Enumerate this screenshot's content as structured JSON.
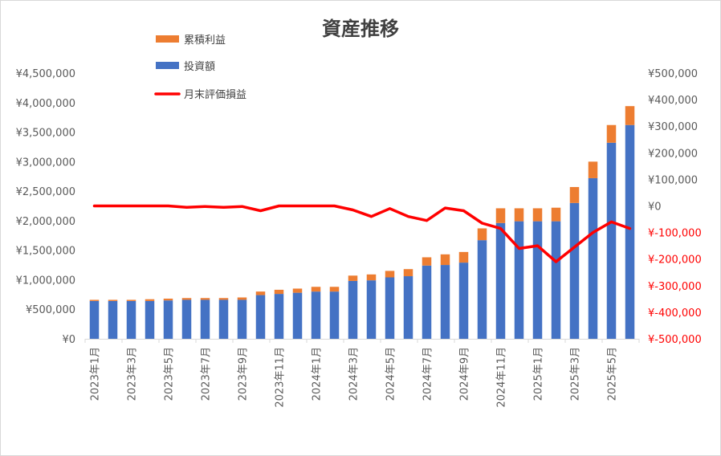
{
  "chart_data": {
    "type": "bar",
    "title": "資産推移",
    "categories": [
      "2023年1月",
      "2023年2月",
      "2023年3月",
      "2023年4月",
      "2023年5月",
      "2023年6月",
      "2023年7月",
      "2023年8月",
      "2023年9月",
      "2023年10月",
      "2023年11月",
      "2023年12月",
      "2024年1月",
      "2024年2月",
      "2024年3月",
      "2024年4月",
      "2024年5月",
      "2024年6月",
      "2024年7月",
      "2024年8月",
      "2024年9月",
      "2024年10月",
      "2024年11月",
      "2024年12月",
      "2025年1月",
      "2025年2月",
      "2025年3月",
      "2025年4月",
      "2025年5月",
      "2025年6月"
    ],
    "x_tick_labels": [
      "2023年1月",
      "2023年3月",
      "2023年5月",
      "2023年7月",
      "2023年9月",
      "2023年11月",
      "2024年1月",
      "2024年3月",
      "2024年5月",
      "2024年7月",
      "2024年9月",
      "2024年11月",
      "2025年1月",
      "2025年3月",
      "2025年5月"
    ],
    "series": [
      {
        "name": "投資額",
        "kind": "stacked-bar",
        "axis": "left",
        "color": "#4472c4",
        "values": [
          640000,
          640000,
          640000,
          640000,
          650000,
          660000,
          660000,
          660000,
          660000,
          740000,
          760000,
          780000,
          800000,
          800000,
          980000,
          990000,
          1040000,
          1060000,
          1240000,
          1250000,
          1290000,
          1670000,
          1960000,
          1990000,
          1990000,
          1990000,
          2300000,
          2720000,
          3320000,
          3620000
        ]
      },
      {
        "name": "累積利益",
        "kind": "stacked-bar",
        "axis": "left",
        "color": "#ed7d31",
        "values": [
          20000,
          20000,
          20000,
          30000,
          30000,
          30000,
          30000,
          30000,
          40000,
          60000,
          70000,
          70000,
          80000,
          80000,
          90000,
          100000,
          110000,
          120000,
          140000,
          180000,
          180000,
          200000,
          250000,
          220000,
          220000,
          230000,
          270000,
          280000,
          300000,
          320000
        ]
      },
      {
        "name": "月末評価損益",
        "kind": "line",
        "axis": "right",
        "color": "#ff0000",
        "values": [
          0,
          0,
          0,
          0,
          0,
          -5000,
          -2000,
          -5000,
          -2000,
          -18000,
          0,
          0,
          0,
          0,
          -15000,
          -40000,
          -10000,
          -40000,
          -55000,
          -8000,
          -18000,
          -65000,
          -85000,
          -160000,
          -150000,
          -210000,
          -155000,
          -100000,
          -60000,
          -85000
        ]
      }
    ],
    "legend_order": [
      "累積利益",
      "投資額",
      "月末評価損益"
    ],
    "legend_position": "top-left",
    "y_left": {
      "ylim": [
        0,
        4500000
      ],
      "tick_labels": [
        "¥0",
        "¥500,000",
        "¥1,000,000",
        "¥1,500,000",
        "¥2,000,000",
        "¥2,500,000",
        "¥3,000,000",
        "¥3,500,000",
        "¥4,000,000",
        "¥4,500,000"
      ]
    },
    "y_right": {
      "ylim": [
        -500000,
        500000
      ],
      "tick_labels": [
        "-¥500,000",
        "-¥400,000",
        "-¥300,000",
        "-¥200,000",
        "-¥100,000",
        "¥0",
        "¥100,000",
        "¥200,000",
        "¥300,000",
        "¥400,000",
        "¥500,000"
      ],
      "display_labels": [
        "¥-500,000",
        "¥-400,000",
        "¥-300,000",
        "¥-200,000",
        "¥-100,000",
        "¥0",
        "¥100,000",
        "¥200,000",
        "¥300,000",
        "¥400,000",
        "¥500,000"
      ],
      "negative_color": "#ff0000"
    },
    "grid": false
  }
}
